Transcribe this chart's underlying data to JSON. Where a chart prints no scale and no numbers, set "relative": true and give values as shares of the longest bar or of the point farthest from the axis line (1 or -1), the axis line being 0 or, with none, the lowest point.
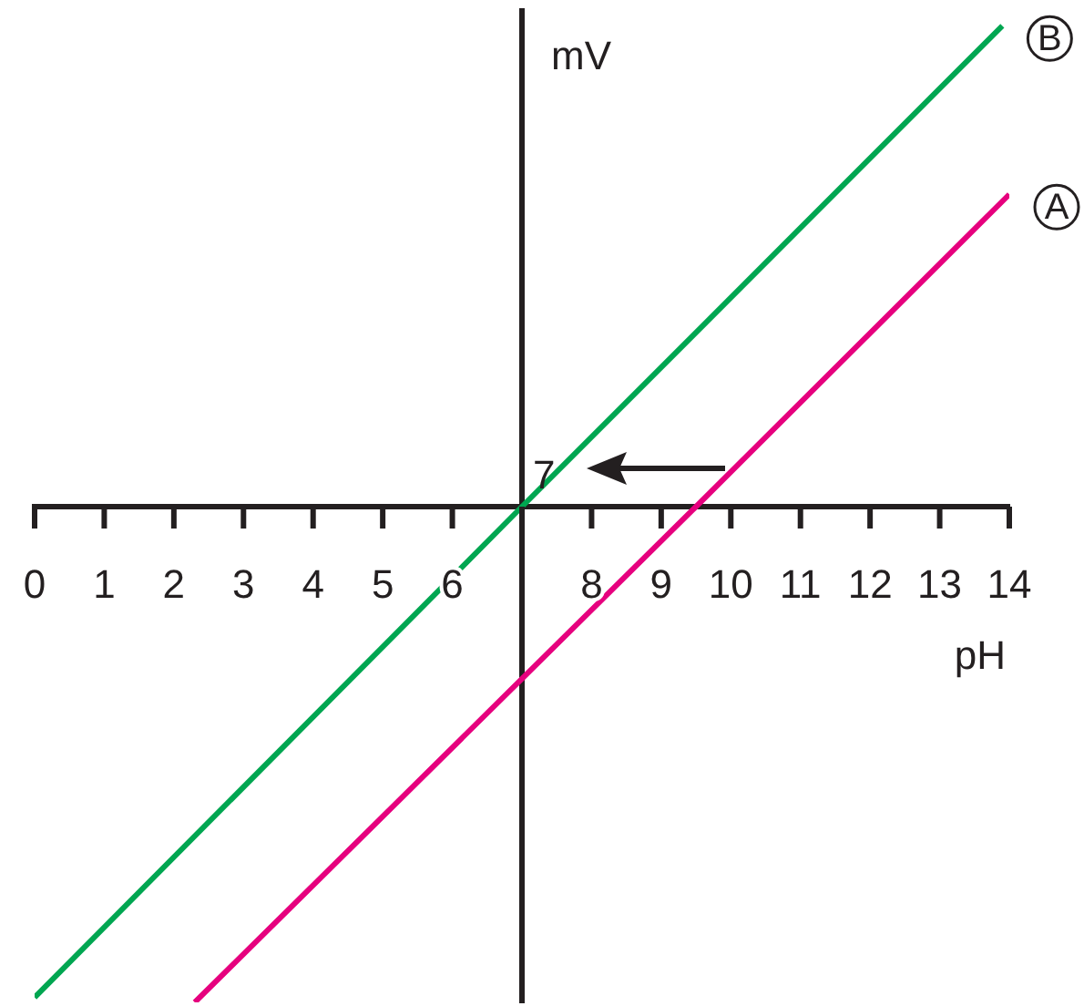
{
  "chart_data": {
    "type": "line",
    "xlabel": "pH",
    "ylabel": "mV",
    "relative": true,
    "legend": false,
    "marker": "none",
    "tick_labels": "x",
    "xlim": [
      0,
      14
    ],
    "xticks": [
      0,
      1,
      2,
      3,
      4,
      5,
      6,
      {
        "value": 7,
        "label": null
      },
      8,
      9,
      10,
      11,
      12,
      13,
      14
    ],
    "series": [
      {
        "name": "B",
        "color": "#00a651",
        "x": [
          0,
          7,
          13.9
        ],
        "values": [
          -0.99,
          0,
          0.97
        ]
      },
      {
        "name": "A",
        "color": "#e6007e",
        "x": [
          2.3,
          9.5,
          14
        ],
        "values": [
          -1,
          0,
          0.63
        ]
      }
    ],
    "annotations": [
      {
        "text": "7",
        "x": 7,
        "y": 0
      }
    ]
  }
}
